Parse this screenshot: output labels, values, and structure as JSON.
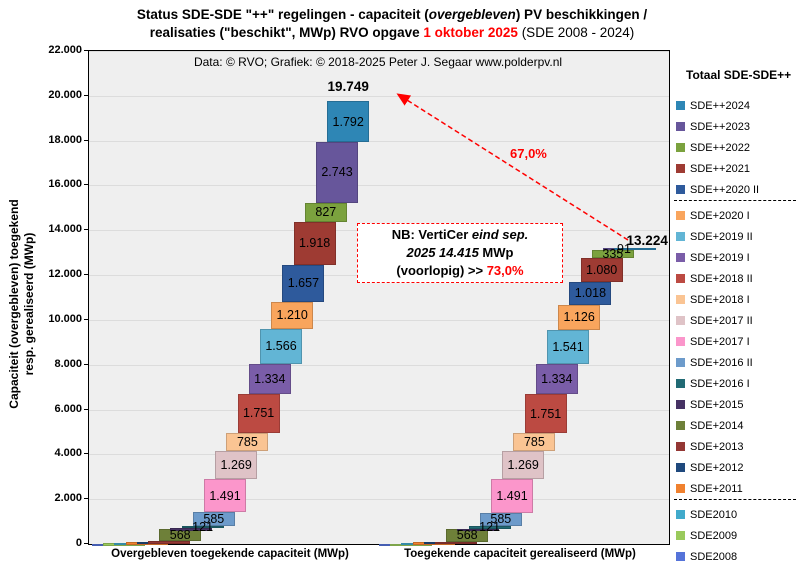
{
  "title": {
    "l1a": "Status SDE-SDE \"++\" regelingen - capaciteit (",
    "l1b": "overgebleven",
    "l1c": ") PV beschikkingen  /",
    "l2a": "realisaties (\"beschikt\", MWp) RVO opgave ",
    "l2b": "1 oktober 2025",
    "l2c": " (SDE 2008 - 2024)"
  },
  "source_note": "Data: © RVO;  Grafiek:  © 2018-2025 Peter J. Segaar www.polderpv.nl",
  "y_axis": {
    "title_line1": "Capaciteit (overgebleven) toegekend",
    "title_line2": "resp. gerealiseerd (MWp)",
    "tick_labels": [
      "0",
      "2.000",
      "4.000",
      "6.000",
      "8.000",
      "10.000",
      "12.000",
      "14.000",
      "16.000",
      "18.000",
      "20.000",
      "22.000"
    ]
  },
  "x_axis": {
    "left_label": "Overgebleven toegekende capaciteit (MWp)",
    "right_label": "Toegekende capaciteit gerealiseerd (MWp)"
  },
  "legend": {
    "title": "Totaal SDE-SDE++",
    "groups": [
      [
        "SDE++2024",
        "SDE++2023",
        "SDE++2022",
        "SDE++2021",
        "SDE++2020 II"
      ],
      [
        "SDE+2020 I",
        "SDE+2019 II",
        "SDE+2019 I",
        "SDE+2018 II",
        "SDE+2018 I",
        "SDE+2017 II",
        "SDE+2017 I",
        "SDE+2016 II",
        "SDE+2016 I",
        "SDE+2015",
        "SDE+2014",
        "SDE+2013",
        "SDE+2012",
        "SDE+2011"
      ],
      [
        "SDE2010",
        "SDE2009",
        "SDE2008"
      ]
    ]
  },
  "annotations": {
    "left_total": "19.749",
    "right_total": "13.224",
    "arrow_percent": "67,0%",
    "note_l1a": "NB: VertiCer ",
    "note_l1b": "eind sep.",
    "note_l2a": "2025 14.415",
    "note_l2b": " MWp",
    "note_l3a": "(voorlopig) >> ",
    "note_l3b": "73,0%"
  },
  "chart_data": {
    "type": "bar",
    "variant": "stacked-waterfall",
    "unit": "MWp",
    "ylim": [
      0,
      22000
    ],
    "grid_step": 2000,
    "legend_position": "right",
    "categories": [
      "Overgebleven toegekende capaciteit (MWp)",
      "Toegekende capaciteit gerealiseerd (MWp)"
    ],
    "totals": {
      "left": 19749,
      "right": 13224,
      "left_label": "19.749",
      "right_label": "13.224"
    },
    "series": [
      {
        "name": "SDE2008",
        "color": "#5573D9",
        "values": [
          2,
          2
        ],
        "labels": [
          null,
          null
        ],
        "estimated": true
      },
      {
        "name": "SDE2009",
        "color": "#9ACA5C",
        "values": [
          22,
          20
        ],
        "labels": [
          null,
          null
        ],
        "estimated": true
      },
      {
        "name": "SDE2010",
        "color": "#41AACB",
        "values": [
          28,
          25
        ],
        "labels": [
          null,
          null
        ],
        "estimated": true
      },
      {
        "name": "SDE+2011",
        "color": "#F0812F",
        "values": [
          34,
          32
        ],
        "labels": [
          null,
          null
        ],
        "estimated": true
      },
      {
        "name": "SDE+2012",
        "color": "#1F497D",
        "values": [
          24,
          22
        ],
        "labels": [
          null,
          null
        ],
        "estimated": true
      },
      {
        "name": "SDE+2013",
        "color": "#943734",
        "values": [
          10,
          8
        ],
        "labels": [
          null,
          null
        ],
        "estimated": true
      },
      {
        "name": "SDE+2014",
        "color": "#6E8039",
        "values": [
          568,
          568
        ],
        "labels": [
          "568",
          "568"
        ]
      },
      {
        "name": "SDE+2015",
        "color": "#463264",
        "values": [
          12,
          5
        ],
        "labels": [
          null,
          null
        ],
        "estimated": true
      },
      {
        "name": "SDE+2016 I",
        "color": "#216A74",
        "values": [
          121,
          121
        ],
        "labels": [
          "121",
          "121"
        ]
      },
      {
        "name": "SDE+2016 II",
        "color": "#6D9BCB",
        "values": [
          585,
          585
        ],
        "labels": [
          "585",
          "585"
        ]
      },
      {
        "name": "SDE+2017 I",
        "color": "#FB96CB",
        "values": [
          1491,
          1491
        ],
        "labels": [
          "1.491",
          "1.491"
        ]
      },
      {
        "name": "SDE+2017 II",
        "color": "#DFC3C7",
        "values": [
          1269,
          1269
        ],
        "labels": [
          "1.269",
          "1.269"
        ]
      },
      {
        "name": "SDE+2018 I",
        "color": "#FAC493",
        "values": [
          785,
          785
        ],
        "labels": [
          "785",
          "785"
        ]
      },
      {
        "name": "SDE+2018 II",
        "color": "#BC4A42",
        "values": [
          1751,
          1751
        ],
        "labels": [
          "1.751",
          "1.751"
        ]
      },
      {
        "name": "SDE+2019 I",
        "color": "#7A5DA8",
        "values": [
          1334,
          1334
        ],
        "labels": [
          "1.334",
          "1.334"
        ]
      },
      {
        "name": "SDE+2019 II",
        "color": "#62B5D5",
        "values": [
          1566,
          1541
        ],
        "labels": [
          "1.566",
          "1.541"
        ]
      },
      {
        "name": "SDE+2020 I",
        "color": "#F9A55D",
        "values": [
          1210,
          1126
        ],
        "labels": [
          "1.210",
          "1.126"
        ]
      },
      {
        "name": "SDE++2020 II",
        "color": "#2E5A9C",
        "values": [
          1657,
          1018
        ],
        "labels": [
          "1.657",
          "1.018"
        ]
      },
      {
        "name": "SDE++2021",
        "color": "#9E3B33",
        "values": [
          1918,
          1080
        ],
        "labels": [
          "1.918",
          "1.080"
        ]
      },
      {
        "name": "SDE++2022",
        "color": "#7BA23E",
        "values": [
          827,
          335
        ],
        "labels": [
          "827",
          "335"
        ]
      },
      {
        "name": "SDE++2023",
        "color": "#67569B",
        "values": [
          2743,
          91
        ],
        "labels": [
          "2.743",
          "91"
        ]
      },
      {
        "name": "SDE++2024",
        "color": "#2E86B5",
        "values": [
          1792,
          15
        ],
        "labels": [
          "1.792",
          null
        ],
        "estimated_right": true
      }
    ]
  }
}
